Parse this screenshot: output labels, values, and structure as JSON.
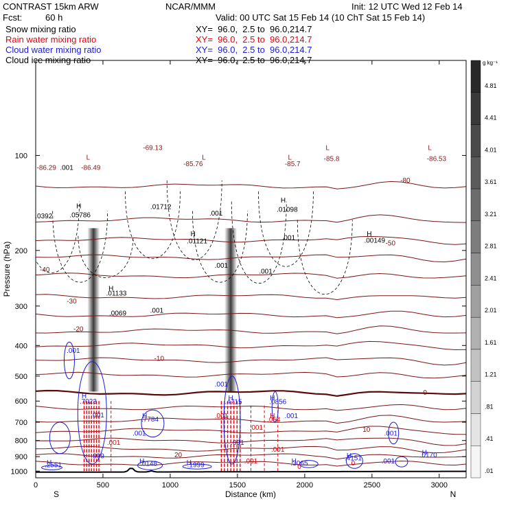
{
  "header": {
    "model": "CONTRAST 15km ARW",
    "agency": "NCAR/MMM",
    "init": "Init: 12 UTC Wed 12 Feb 14",
    "fcst_label": "Fcst:",
    "fcst_value": "60 h",
    "valid": "Valid: 00 UTC Sat 15 Feb 14 (10 ChT Sat 15 Feb 14)",
    "fields": [
      {
        "name": "Snow mixing ratio",
        "xy": "XY=  96.0,  2.5 to  96.0,214.7",
        "color": "#000000"
      },
      {
        "name": "Rain water mixing ratio",
        "xy": "XY=  96.0,  2.5 to  96.0,214.7",
        "color": "#e8000b"
      },
      {
        "name": "Cloud water mixing ratio",
        "xy": "XY=  96.0,  2.5 to  96.0,214.7",
        "color": "#1a1adc"
      },
      {
        "name": "Cloud ice mixing ratio",
        "xy": "XY=  96.0,  2.5 to  96.0,214.7",
        "color": "#000000"
      }
    ]
  },
  "chart_data": {
    "type": "heatmap",
    "xlabel": "Distance (km)",
    "ylabel": "Pressure (hPa)",
    "xlim": [
      0,
      3200
    ],
    "ylim": [
      1050,
      50
    ],
    "y_scale": "log",
    "x_ticks": [
      0,
      500,
      1000,
      1500,
      2000,
      2500,
      3000
    ],
    "x_tick_labels": [
      "0",
      "500",
      "1000",
      "1500",
      "2000",
      "2500",
      "3000"
    ],
    "y_ticks": [
      100,
      200,
      300,
      400,
      500,
      600,
      700,
      800,
      900,
      1000
    ],
    "y_tick_labels": [
      "100",
      "200",
      "300",
      "400",
      "500",
      "600",
      "700",
      "800",
      "900",
      "1000"
    ],
    "left_end_label": "S",
    "right_end_label": "N",
    "colorbar": {
      "unit": "g kg⁻¹",
      "labels": [
        "4.81",
        "4.41",
        "4.01",
        "3.61",
        "3.21",
        "2.81",
        "2.41",
        "2.01",
        "1.61",
        "1.21",
        ".81",
        ".41",
        ".01"
      ]
    },
    "temperature_contours": [
      {
        "value": -80,
        "label": "-80",
        "anchor_x": 2680,
        "anchor_p": 120
      },
      {
        "value": -50,
        "label": "-50",
        "anchor_x": 2570,
        "anchor_p": 190
      },
      {
        "value": -40,
        "label": "-40",
        "anchor_x": 0,
        "anchor_p": 230
      },
      {
        "value": -30,
        "label": "-30",
        "anchor_x": 200,
        "anchor_p": 290
      },
      {
        "value": -20,
        "label": "-20",
        "anchor_x": 250,
        "anchor_p": 355
      },
      {
        "value": -10,
        "label": "-10",
        "anchor_x": 850,
        "anchor_p": 440
      },
      {
        "value": 0,
        "label": "0",
        "anchor_x": 2850,
        "anchor_p": 565
      },
      {
        "value": 10,
        "label": "10",
        "anchor_x": 2400,
        "anchor_p": 740
      },
      {
        "value": 20,
        "label": "20",
        "anchor_x": 1000,
        "anchor_p": 890
      }
    ],
    "contour_labels": [
      {
        "text": "L",
        "x": 390,
        "p": 103,
        "color": "#8b1a1a"
      },
      {
        "text": "-69.13",
        "x": 870,
        "p": 96,
        "color": "#8b1a1a"
      },
      {
        "text": "L",
        "x": 1250,
        "p": 103,
        "color": "#8b1a1a"
      },
      {
        "text": "-85.76",
        "x": 1170,
        "p": 108,
        "color": "#8b1a1a"
      },
      {
        "text": "L",
        "x": 1890,
        "p": 103,
        "color": "#8b1a1a"
      },
      {
        "text": "-85.7",
        "x": 1910,
        "p": 108,
        "color": "#8b1a1a"
      },
      {
        "text": "L",
        "x": 2170,
        "p": 96,
        "color": "#8b1a1a"
      },
      {
        "text": "-85.8",
        "x": 2200,
        "p": 104,
        "color": "#8b1a1a"
      },
      {
        "text": "L",
        "x": 2930,
        "p": 96,
        "color": "#8b1a1a"
      },
      {
        "text": "-86.53",
        "x": 2980,
        "p": 104,
        "color": "#8b1a1a"
      },
      {
        "text": "-86.49",
        "x": 410,
        "p": 111,
        "color": "#8b1a1a"
      },
      {
        "text": "-86.29",
        "x": 80,
        "p": 111,
        "color": "#8b1a1a"
      },
      {
        "text": ".001",
        "x": 230,
        "p": 111,
        "color": "#000000"
      },
      {
        "text": ".0392",
        "x": 60,
        "p": 158,
        "color": "#000000"
      },
      {
        "text": "H",
        "x": 320,
        "p": 147,
        "color": "#000000"
      },
      {
        "text": ".05786",
        "x": 330,
        "p": 157,
        "color": "#000000"
      },
      {
        "text": ".01712",
        "x": 930,
        "p": 148,
        "color": "#000000"
      },
      {
        "text": ".001",
        "x": 1340,
        "p": 155,
        "color": "#000000"
      },
      {
        "text": "H",
        "x": 1840,
        "p": 141,
        "color": "#000000"
      },
      {
        "text": ".01098",
        "x": 1870,
        "p": 151,
        "color": "#000000"
      },
      {
        "text": "H",
        "x": 1170,
        "p": 180,
        "color": "#000000"
      },
      {
        "text": ".01121",
        "x": 1200,
        "p": 190,
        "color": "#000000"
      },
      {
        "text": ".001",
        "x": 1880,
        "p": 185,
        "color": "#000000"
      },
      {
        "text": "H",
        "x": 2480,
        "p": 180,
        "color": "#000000"
      },
      {
        "text": ".00149",
        "x": 2520,
        "p": 189,
        "color": "#000000"
      },
      {
        "text": ".001",
        "x": 1380,
        "p": 227,
        "color": "#000000"
      },
      {
        "text": ".001",
        "x": 1710,
        "p": 237,
        "color": "#000000"
      },
      {
        "text": "H",
        "x": 560,
        "p": 268,
        "color": "#000000"
      },
      {
        "text": ".01133",
        "x": 600,
        "p": 278,
        "color": "#000000"
      },
      {
        "text": ".0069",
        "x": 610,
        "p": 321,
        "color": "#000000"
      },
      {
        "text": ".001",
        "x": 900,
        "p": 315,
        "color": "#000000"
      },
      {
        "text": ".001",
        "x": 280,
        "p": 422,
        "color": "#1a1adc"
      },
      {
        "text": ".001",
        "x": 1380,
        "p": 540,
        "color": "#1a1adc"
      },
      {
        "text": "H",
        "x": 360,
        "p": 587,
        "color": "#1a1adc"
      },
      {
        "text": ".7023",
        "x": 390,
        "p": 611,
        "color": "#1a1adc"
      },
      {
        "text": "H",
        "x": 1450,
        "p": 597,
        "color": "#1a1adc"
      },
      {
        "text": ".4715",
        "x": 1470,
        "p": 613,
        "color": "#1a1adc"
      },
      {
        "text": "H",
        "x": 1760,
        "p": 597,
        "color": "#1a1adc"
      },
      {
        "text": ".0856",
        "x": 1800,
        "p": 613,
        "color": "#1a1adc"
      },
      {
        "text": "H",
        "x": 810,
        "p": 680,
        "color": "#1a1adc"
      },
      {
        "text": ".7784",
        "x": 850,
        "p": 697,
        "color": "#1a1adc"
      },
      {
        "text": ".001",
        "x": 1380,
        "p": 680,
        "color": "#e8000b"
      },
      {
        "text": "H",
        "x": 1760,
        "p": 679,
        "color": "#e8000b"
      },
      {
        "text": ".054",
        "x": 1770,
        "p": 698,
        "color": "#e8000b"
      },
      {
        "text": ".001",
        "x": 1900,
        "p": 680,
        "color": "#1a1adc"
      },
      {
        "text": ".001",
        "x": 770,
        "p": 771,
        "color": "#1a1adc"
      },
      {
        "text": ".001",
        "x": 2640,
        "p": 771,
        "color": "#1a1adc"
      },
      {
        "text": ".001",
        "x": 580,
        "p": 825,
        "color": "#e8000b"
      },
      {
        "text": ".001",
        "x": 1500,
        "p": 825,
        "color": "#1a1adc"
      },
      {
        "text": ".001",
        "x": 1800,
        "p": 867,
        "color": "#e8000b"
      },
      {
        "text": "H",
        "x": 2890,
        "p": 887,
        "color": "#1a1adc"
      },
      {
        "text": ".0170",
        "x": 2920,
        "p": 904,
        "color": "#1a1adc"
      },
      {
        "text": "H",
        "x": 2330,
        "p": 907,
        "color": "#1a1adc"
      },
      {
        "text": ".4151",
        "x": 2360,
        "p": 925,
        "color": "#1a1adc"
      },
      {
        "text": "H",
        "x": 100,
        "p": 955,
        "color": "#1a1adc"
      },
      {
        "text": ".2551",
        "x": 130,
        "p": 972,
        "color": "#1a1adc"
      },
      {
        "text": "H",
        "x": 790,
        "p": 945,
        "color": "#1a1adc"
      },
      {
        "text": ".0148",
        "x": 840,
        "p": 962,
        "color": "#1a1adc"
      },
      {
        "text": "H",
        "x": 1140,
        "p": 955,
        "color": "#1a1adc"
      },
      {
        "text": ".1999",
        "x": 1190,
        "p": 972,
        "color": "#1a1adc"
      },
      {
        "text": ".001",
        "x": 1600,
        "p": 945,
        "color": "#e8000b"
      },
      {
        "text": "H",
        "x": 1920,
        "p": 945,
        "color": "#1a1adc"
      },
      {
        "text": ".3065",
        "x": 1960,
        "p": 960,
        "color": "#1a1adc"
      },
      {
        "text": "0",
        "x": 1960,
        "p": 985,
        "color": "#e8000b"
      },
      {
        "text": ".001",
        "x": 2620,
        "p": 945,
        "color": "#1a1adc"
      },
      {
        "text": "0",
        "x": 2360,
        "p": 960,
        "color": "#e8000b"
      },
      {
        "text": ".999",
        "x": 460,
        "p": 910,
        "color": "#1a1adc"
      },
      {
        "text": ".001",
        "x": 1640,
        "p": 740,
        "color": "#e8000b"
      },
      {
        "text": ".001",
        "x": 460,
        "p": 675,
        "color": "#1a1adc"
      }
    ]
  }
}
